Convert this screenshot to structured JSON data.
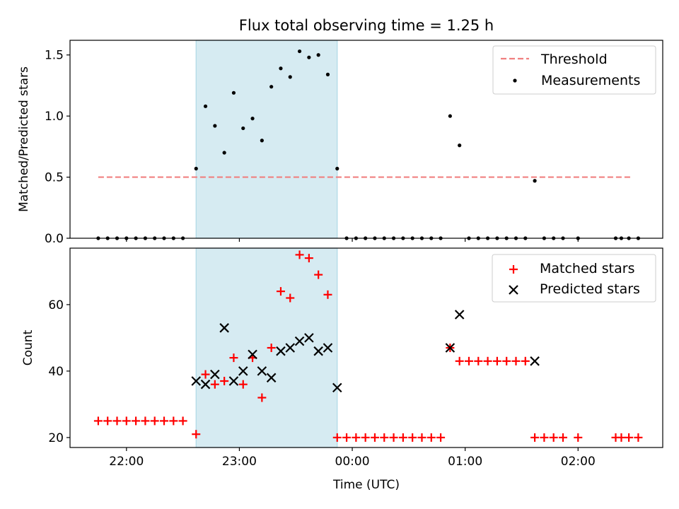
{
  "chart_data": [
    {
      "type": "scatter",
      "title": "Flux total observing time = 1.25 h",
      "xlabel": "",
      "ylabel": "Matched/Predicted stars",
      "xlim": [
        "21:30",
        "02:45"
      ],
      "ylim": [
        0,
        1.62
      ],
      "yticks": [
        0.0,
        0.5,
        1.0,
        1.5
      ],
      "ytick_labels": [
        "0.0",
        "0.5",
        "1.0",
        "1.5"
      ],
      "grid": false,
      "legend_position": "top-right",
      "legend": [
        "Threshold",
        "Measurements"
      ],
      "highlight_span": {
        "start": "22:37",
        "end": "23:52",
        "color": "#add8e6"
      },
      "threshold": {
        "name": "Threshold",
        "y": 0.5,
        "x_start": "21:45",
        "x_end": "02:28",
        "color": "#f08080",
        "style": "dashed"
      },
      "series": [
        {
          "name": "Measurements",
          "color": "#000000",
          "marker": "dot",
          "points": [
            [
              "21:45",
              0
            ],
            [
              "21:50",
              0
            ],
            [
              "21:55",
              0
            ],
            [
              "22:00",
              0
            ],
            [
              "22:05",
              0
            ],
            [
              "22:10",
              0
            ],
            [
              "22:15",
              0
            ],
            [
              "22:20",
              0
            ],
            [
              "22:25",
              0
            ],
            [
              "22:30",
              0
            ],
            [
              "22:37",
              0.57
            ],
            [
              "22:42",
              1.08
            ],
            [
              "22:47",
              0.92
            ],
            [
              "22:52",
              0.7
            ],
            [
              "22:57",
              1.19
            ],
            [
              "23:02",
              0.9
            ],
            [
              "23:07",
              0.98
            ],
            [
              "23:12",
              0.8
            ],
            [
              "23:17",
              1.24
            ],
            [
              "23:22",
              1.39
            ],
            [
              "23:27",
              1.32
            ],
            [
              "23:32",
              1.53
            ],
            [
              "23:37",
              1.48
            ],
            [
              "23:42",
              1.5
            ],
            [
              "23:47",
              1.34
            ],
            [
              "23:52",
              0.57
            ],
            [
              "23:57",
              0
            ],
            [
              "00:02",
              0
            ],
            [
              "00:07",
              0
            ],
            [
              "00:12",
              0
            ],
            [
              "00:17",
              0
            ],
            [
              "00:22",
              0
            ],
            [
              "00:27",
              0
            ],
            [
              "00:32",
              0
            ],
            [
              "00:37",
              0
            ],
            [
              "00:42",
              0
            ],
            [
              "00:47",
              0
            ],
            [
              "00:52",
              1.0
            ],
            [
              "00:57",
              0.76
            ],
            [
              "01:02",
              0
            ],
            [
              "01:07",
              0
            ],
            [
              "01:12",
              0
            ],
            [
              "01:17",
              0
            ],
            [
              "01:22",
              0
            ],
            [
              "01:27",
              0
            ],
            [
              "01:32",
              0
            ],
            [
              "01:37",
              0.47
            ],
            [
              "01:42",
              0
            ],
            [
              "01:47",
              0
            ],
            [
              "01:52",
              0
            ],
            [
              "02:00",
              0
            ],
            [
              "02:20",
              0
            ],
            [
              "02:23",
              0
            ],
            [
              "02:27",
              0
            ],
            [
              "02:32",
              0
            ]
          ]
        }
      ]
    },
    {
      "type": "scatter",
      "title": "",
      "xlabel": "Time (UTC)",
      "ylabel": "Count",
      "xlim": [
        "21:30",
        "02:45"
      ],
      "xticks": [
        "22:00",
        "23:00",
        "00:00",
        "01:00",
        "02:00"
      ],
      "xtick_labels": [
        "22:00",
        "23:00",
        "00:00",
        "01:00",
        "02:00"
      ],
      "ylim": [
        17,
        77
      ],
      "yticks": [
        20,
        40,
        60
      ],
      "ytick_labels": [
        "20",
        "40",
        "60"
      ],
      "grid": false,
      "legend_position": "top-right",
      "legend": [
        "Matched stars",
        "Predicted stars"
      ],
      "highlight_span": {
        "start": "22:37",
        "end": "23:52",
        "color": "#add8e6"
      },
      "series": [
        {
          "name": "Matched stars",
          "color": "#ff0000",
          "marker": "plus",
          "points": [
            [
              "21:45",
              25
            ],
            [
              "21:50",
              25
            ],
            [
              "21:55",
              25
            ],
            [
              "22:00",
              25
            ],
            [
              "22:05",
              25
            ],
            [
              "22:10",
              25
            ],
            [
              "22:15",
              25
            ],
            [
              "22:20",
              25
            ],
            [
              "22:25",
              25
            ],
            [
              "22:30",
              25
            ],
            [
              "22:37",
              21
            ],
            [
              "22:42",
              39
            ],
            [
              "22:47",
              36
            ],
            [
              "22:52",
              37
            ],
            [
              "22:57",
              44
            ],
            [
              "23:02",
              36
            ],
            [
              "23:07",
              44
            ],
            [
              "23:12",
              32
            ],
            [
              "23:17",
              47
            ],
            [
              "23:22",
              64
            ],
            [
              "23:27",
              62
            ],
            [
              "23:32",
              75
            ],
            [
              "23:37",
              74
            ],
            [
              "23:42",
              69
            ],
            [
              "23:47",
              63
            ],
            [
              "23:52",
              20
            ],
            [
              "23:57",
              20
            ],
            [
              "00:02",
              20
            ],
            [
              "00:07",
              20
            ],
            [
              "00:12",
              20
            ],
            [
              "00:17",
              20
            ],
            [
              "00:22",
              20
            ],
            [
              "00:27",
              20
            ],
            [
              "00:32",
              20
            ],
            [
              "00:37",
              20
            ],
            [
              "00:42",
              20
            ],
            [
              "00:47",
              20
            ],
            [
              "00:52",
              47
            ],
            [
              "00:57",
              43
            ],
            [
              "01:02",
              43
            ],
            [
              "01:07",
              43
            ],
            [
              "01:12",
              43
            ],
            [
              "01:17",
              43
            ],
            [
              "01:22",
              43
            ],
            [
              "01:27",
              43
            ],
            [
              "01:32",
              43
            ],
            [
              "01:37",
              20
            ],
            [
              "01:42",
              20
            ],
            [
              "01:47",
              20
            ],
            [
              "01:52",
              20
            ],
            [
              "02:00",
              20
            ],
            [
              "02:20",
              20
            ],
            [
              "02:23",
              20
            ],
            [
              "02:27",
              20
            ],
            [
              "02:32",
              20
            ]
          ]
        },
        {
          "name": "Predicted stars",
          "color": "#000000",
          "marker": "x",
          "points": [
            [
              "22:37",
              37
            ],
            [
              "22:42",
              36
            ],
            [
              "22:47",
              39
            ],
            [
              "22:52",
              53
            ],
            [
              "22:57",
              37
            ],
            [
              "23:02",
              40
            ],
            [
              "23:07",
              45
            ],
            [
              "23:12",
              40
            ],
            [
              "23:17",
              38
            ],
            [
              "23:22",
              46
            ],
            [
              "23:27",
              47
            ],
            [
              "23:32",
              49
            ],
            [
              "23:37",
              50
            ],
            [
              "23:42",
              46
            ],
            [
              "23:47",
              47
            ],
            [
              "23:52",
              35
            ],
            [
              "00:52",
              47
            ],
            [
              "00:57",
              57
            ],
            [
              "01:37",
              43
            ]
          ]
        }
      ]
    }
  ]
}
